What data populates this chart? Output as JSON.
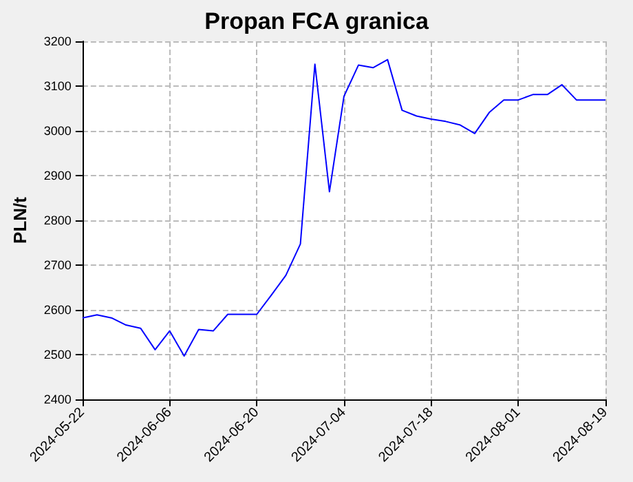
{
  "chart_data": {
    "type": "line",
    "title": "Propan FCA granica",
    "ylabel": "PLN/t",
    "categories": [
      "2024-05-22",
      null,
      null,
      null,
      null,
      null,
      "2024-06-06",
      null,
      null,
      null,
      null,
      null,
      "2024-06-20",
      null,
      null,
      null,
      null,
      null,
      "2024-07-04",
      null,
      null,
      null,
      null,
      null,
      "2024-07-18",
      null,
      null,
      null,
      null,
      null,
      "2024-08-01",
      null,
      null,
      null,
      null,
      null,
      "2024-08-19"
    ],
    "series": [
      {
        "color": "#0000ff",
        "values": [
          2582,
          2589,
          2582,
          2566,
          2559,
          2511,
          2553,
          2497,
          2556,
          2553,
          2590,
          2590,
          2590,
          2633,
          2677,
          2747,
          3149,
          2864,
          3077,
          3147,
          3141,
          3159,
          3046,
          3033,
          3026,
          3021,
          3013,
          2994,
          3041,
          3069,
          3069,
          3081,
          3081,
          3103,
          3069,
          3069,
          3069
        ]
      }
    ],
    "ylim": [
      2400,
      3200
    ],
    "yticks": [
      2400,
      2500,
      2600,
      2700,
      2800,
      2900,
      3000,
      3100,
      3200
    ],
    "grid": true,
    "marker": "none",
    "line_style": "solid"
  }
}
